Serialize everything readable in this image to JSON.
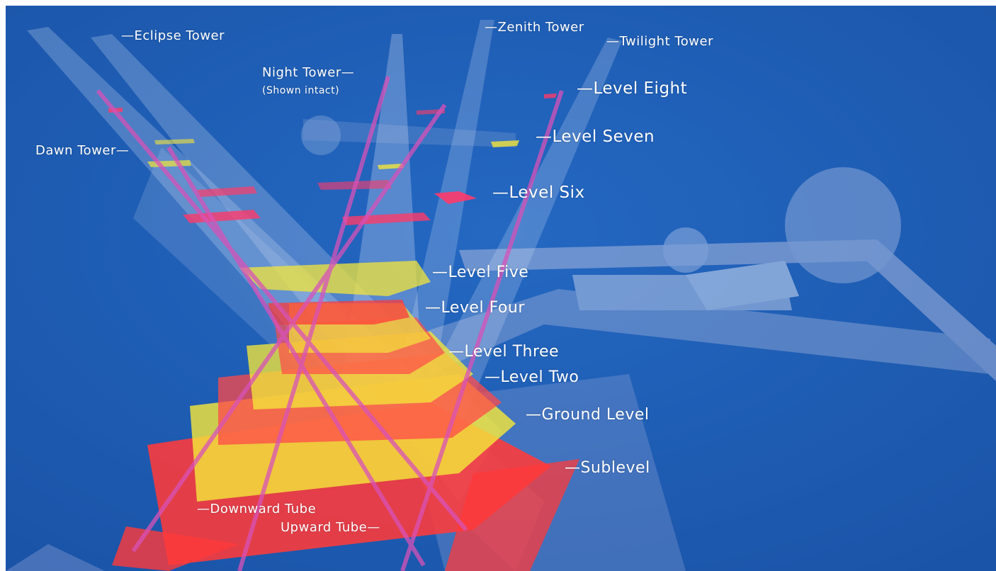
{
  "colors": {
    "background": "#1d5db4",
    "tower_glass": "#c9d6f2",
    "level_red": "#ff3a3a",
    "level_yellow": "#f3e53a",
    "tube": "#d852b8",
    "label": "#ffffff"
  },
  "labels": {
    "eclipse_tower": "—Eclipse Tower",
    "zenith_tower": "—Zenith Tower",
    "twilight_tower": "—Twilight Tower",
    "night_tower": "Night Tower—",
    "night_tower_note": "(Shown intact)",
    "dawn_tower": "Dawn Tower—",
    "level_eight": "—Level Eight",
    "level_seven": "—Level Seven",
    "level_six": "—Level Six",
    "level_five": "—Level Five",
    "level_four": "—Level Four",
    "level_three": "—Level Three",
    "level_two": "—Level Two",
    "ground_level": "—Ground Level",
    "sublevel": "—Sublevel",
    "downward_tube": "—Downward Tube",
    "upward_tube": "Upward Tube—"
  }
}
